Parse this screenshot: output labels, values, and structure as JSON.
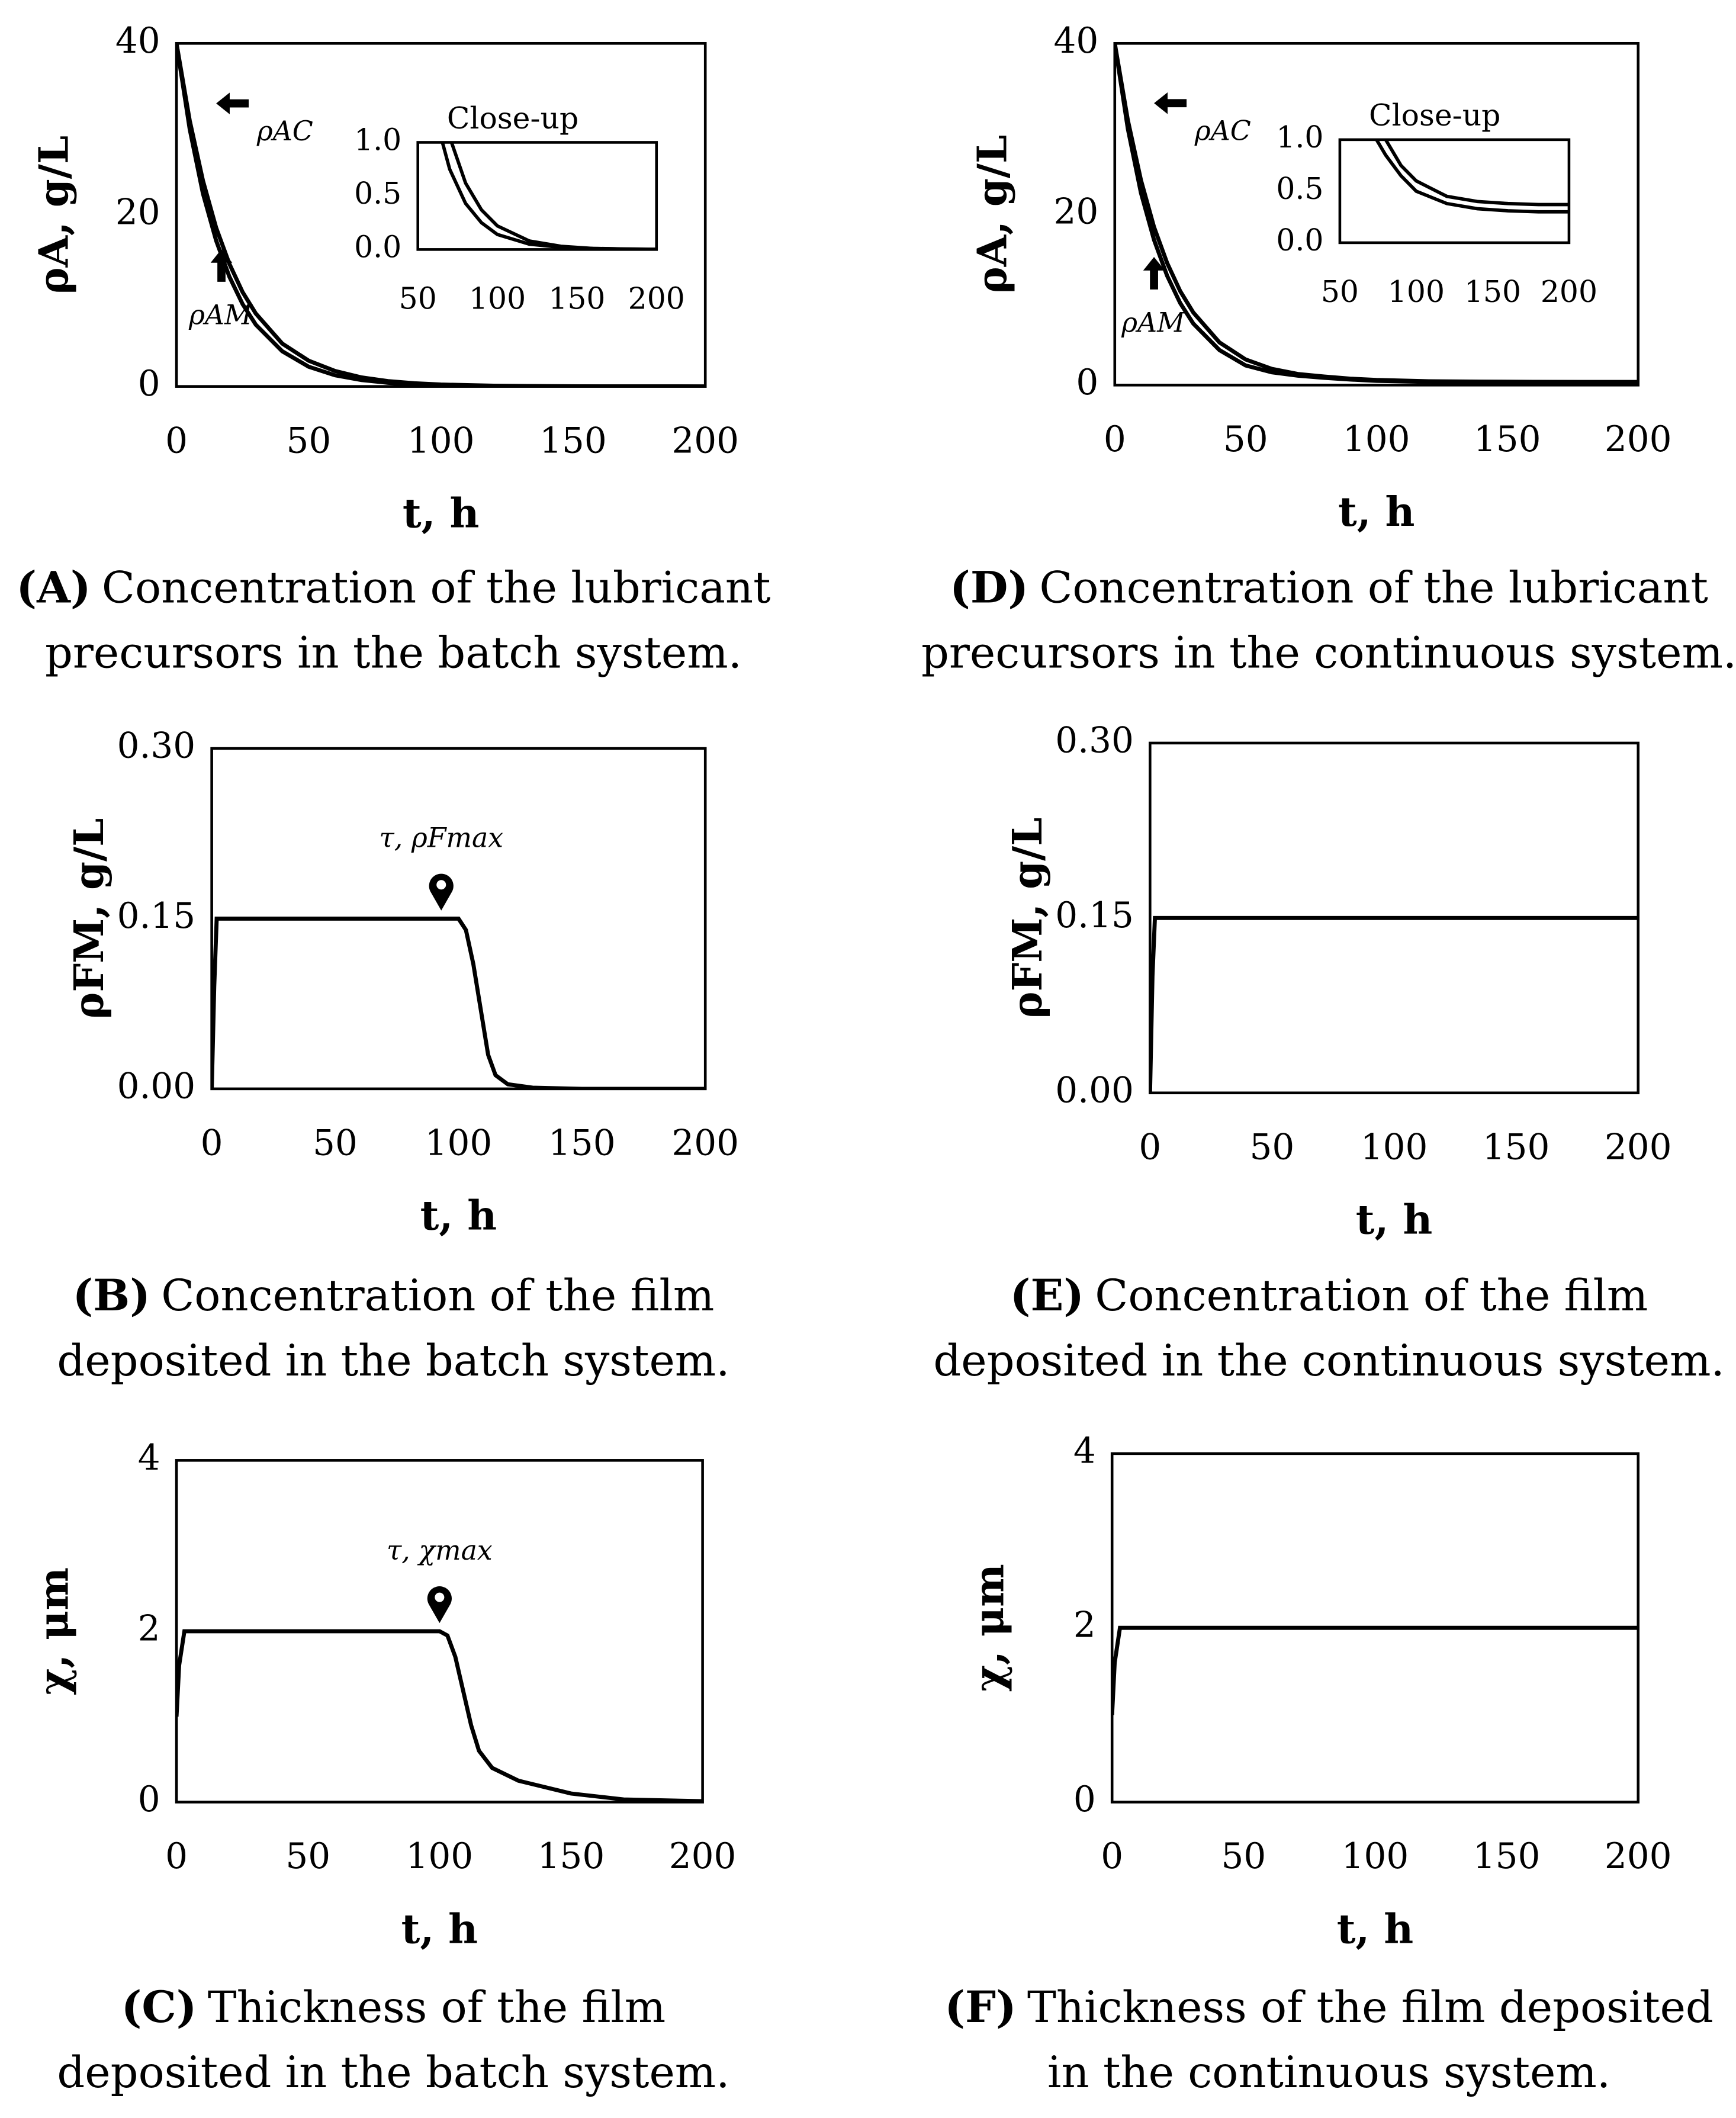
{
  "chart_data": [
    {
      "type": "line",
      "ylabel": "ρA, g/L",
      "xlabel": "t, h",
      "caption_label": "(A)",
      "caption": [
        "Concentration of the lubricant",
        "precursors in the batch system."
      ],
      "xlim": [
        0,
        200
      ],
      "ylim": [
        0,
        40
      ],
      "xticks": [
        0,
        50,
        100,
        150,
        200
      ],
      "yticks": [
        0,
        20,
        40
      ],
      "x": [
        0,
        5,
        10,
        15,
        20,
        25,
        30,
        40,
        50,
        60,
        70,
        80,
        90,
        100,
        120,
        140,
        160,
        180,
        200
      ],
      "series": [
        {
          "name": "ρAC",
          "color": "#000000",
          "values": [
            40,
            31,
            24,
            18.5,
            14.3,
            11,
            8.5,
            5,
            3,
            1.8,
            1.05,
            0.62,
            0.37,
            0.22,
            0.08,
            0.03,
            0.01,
            0.005,
            0.002
          ]
        },
        {
          "name": "ρAM",
          "color": "#000000",
          "values": [
            40,
            30,
            22.5,
            17,
            12.8,
            9.6,
            7.2,
            4.1,
            2.3,
            1.3,
            0.75,
            0.43,
            0.25,
            0.14,
            0.05,
            0.02,
            0.01,
            0.004,
            0.002
          ]
        }
      ],
      "annotations": [
        {
          "text": "ρAC",
          "x": 15,
          "y": 33,
          "arrow": "left"
        },
        {
          "text": "ρAM",
          "x": 17,
          "y": 16,
          "arrow": "up"
        }
      ],
      "inset": {
        "title": "Close-up",
        "xlim": [
          50,
          200
        ],
        "ylim": [
          0,
          1
        ],
        "xticks": [
          50,
          100,
          150,
          200
        ],
        "yticks": [
          {
            "value": 0,
            "label": "0.0"
          },
          0.5,
          {
            "value": 1,
            "label": "1.0"
          }
        ]
      }
    },
    {
      "type": "line",
      "ylabel": "ρA, g/L",
      "xlabel": "t, h",
      "caption_label": "(D)",
      "caption": [
        "Concentration of the lubricant",
        "precursors in the continuous system."
      ],
      "xlim": [
        0,
        200
      ],
      "ylim": [
        0,
        40
      ],
      "xticks": [
        0,
        50,
        100,
        150,
        200
      ],
      "yticks": [
        0,
        20,
        40
      ],
      "x": [
        0,
        5,
        10,
        15,
        20,
        25,
        30,
        40,
        50,
        60,
        70,
        80,
        90,
        100,
        120,
        140,
        160,
        180,
        200
      ],
      "series": [
        {
          "name": "ρAC",
          "color": "#000000",
          "values": [
            40,
            31,
            24,
            18.5,
            14.3,
            11,
            8.5,
            5,
            3,
            1.9,
            1.3,
            1.0,
            0.75,
            0.6,
            0.45,
            0.4,
            0.38,
            0.37,
            0.37
          ]
        },
        {
          "name": "ρAM",
          "color": "#000000",
          "values": [
            40,
            30,
            22.5,
            17,
            12.8,
            9.6,
            7.2,
            4.1,
            2.3,
            1.5,
            1.1,
            0.85,
            0.65,
            0.5,
            0.38,
            0.33,
            0.31,
            0.3,
            0.3
          ]
        }
      ],
      "annotations": [
        {
          "text": "ρAC",
          "x": 15,
          "y": 33,
          "arrow": "left"
        },
        {
          "text": "ρAM",
          "x": 15,
          "y": 15,
          "arrow": "up"
        }
      ],
      "inset": {
        "title": "Close-up",
        "xlim": [
          50,
          200
        ],
        "ylim": [
          0,
          1
        ],
        "xticks": [
          50,
          100,
          150,
          200
        ],
        "yticks": [
          {
            "value": 0,
            "label": "0.0"
          },
          0.5,
          {
            "value": 1,
            "label": "1.0"
          }
        ]
      }
    },
    {
      "type": "line",
      "ylabel": "ρFM, g/L",
      "xlabel": "t, h",
      "caption_label": "(B)",
      "caption": [
        "Concentration of the film",
        "deposited in the batch system."
      ],
      "xlim": [
        0,
        200
      ],
      "ylim": [
        0,
        0.3
      ],
      "xticks": [
        0,
        50,
        100,
        150,
        200
      ],
      "yticks": [
        {
          "value": 0,
          "label": "0.00"
        },
        0.15,
        {
          "value": 0.3,
          "label": "0.30"
        }
      ],
      "x": [
        0,
        1,
        2,
        3,
        100,
        103,
        106,
        109,
        112,
        115,
        120,
        130,
        150,
        200
      ],
      "series": [
        {
          "name": "ρFM",
          "color": "#000000",
          "values": [
            0,
            0.09,
            0.15,
            0.15,
            0.15,
            0.14,
            0.11,
            0.07,
            0.03,
            0.012,
            0.004,
            0.001,
            0,
            0
          ]
        }
      ],
      "annotations": [
        {
          "text": "τ, ρFmax",
          "x": 93,
          "y": 0.15,
          "arrow": "pin"
        }
      ]
    },
    {
      "type": "line",
      "ylabel": "ρFM, g/L",
      "xlabel": "t, h",
      "caption_label": "(E)",
      "caption": [
        "Concentration of the film",
        "deposited in the continuous system."
      ],
      "xlim": [
        0,
        200
      ],
      "ylim": [
        0,
        0.3
      ],
      "xticks": [
        0,
        50,
        100,
        150,
        200
      ],
      "yticks": [
        {
          "value": 0,
          "label": "0.00"
        },
        0.15,
        {
          "value": 0.3,
          "label": "0.30"
        }
      ],
      "x": [
        0,
        1,
        2,
        200
      ],
      "series": [
        {
          "name": "ρFM",
          "color": "#000000",
          "values": [
            0,
            0.1,
            0.15,
            0.15
          ]
        }
      ]
    },
    {
      "type": "line",
      "ylabel": "χ, μm",
      "xlabel": "t, h",
      "caption_label": "(C)",
      "caption": [
        "Thickness of the film",
        "deposited in the batch system."
      ],
      "xlim": [
        0,
        200
      ],
      "ylim": [
        0,
        4
      ],
      "xticks": [
        0,
        50,
        100,
        150,
        200
      ],
      "yticks": [
        0,
        2,
        4
      ],
      "x": [
        0,
        1,
        3,
        100,
        103,
        106,
        109,
        112,
        115,
        120,
        130,
        150,
        170,
        200
      ],
      "series": [
        {
          "name": "χ",
          "color": "#000000",
          "values": [
            1,
            1.6,
            2,
            2,
            1.95,
            1.7,
            1.3,
            0.9,
            0.6,
            0.4,
            0.25,
            0.1,
            0.03,
            0.01
          ]
        }
      ],
      "annotations": [
        {
          "text": "τ, χmax",
          "x": 100,
          "y": 2,
          "arrow": "pin"
        }
      ]
    },
    {
      "type": "line",
      "ylabel": "χ, μm",
      "xlabel": "t, h",
      "caption_label": "(F)",
      "caption": [
        "Thickness of the film deposited",
        "in the continuous system."
      ],
      "xlim": [
        0,
        200
      ],
      "ylim": [
        0,
        4
      ],
      "xticks": [
        0,
        50,
        100,
        150,
        200
      ],
      "yticks": [
        0,
        2,
        4
      ],
      "x": [
        0,
        1,
        3,
        200
      ],
      "series": [
        {
          "name": "χ",
          "color": "#000000",
          "values": [
            1,
            1.6,
            2,
            2
          ]
        }
      ]
    }
  ]
}
